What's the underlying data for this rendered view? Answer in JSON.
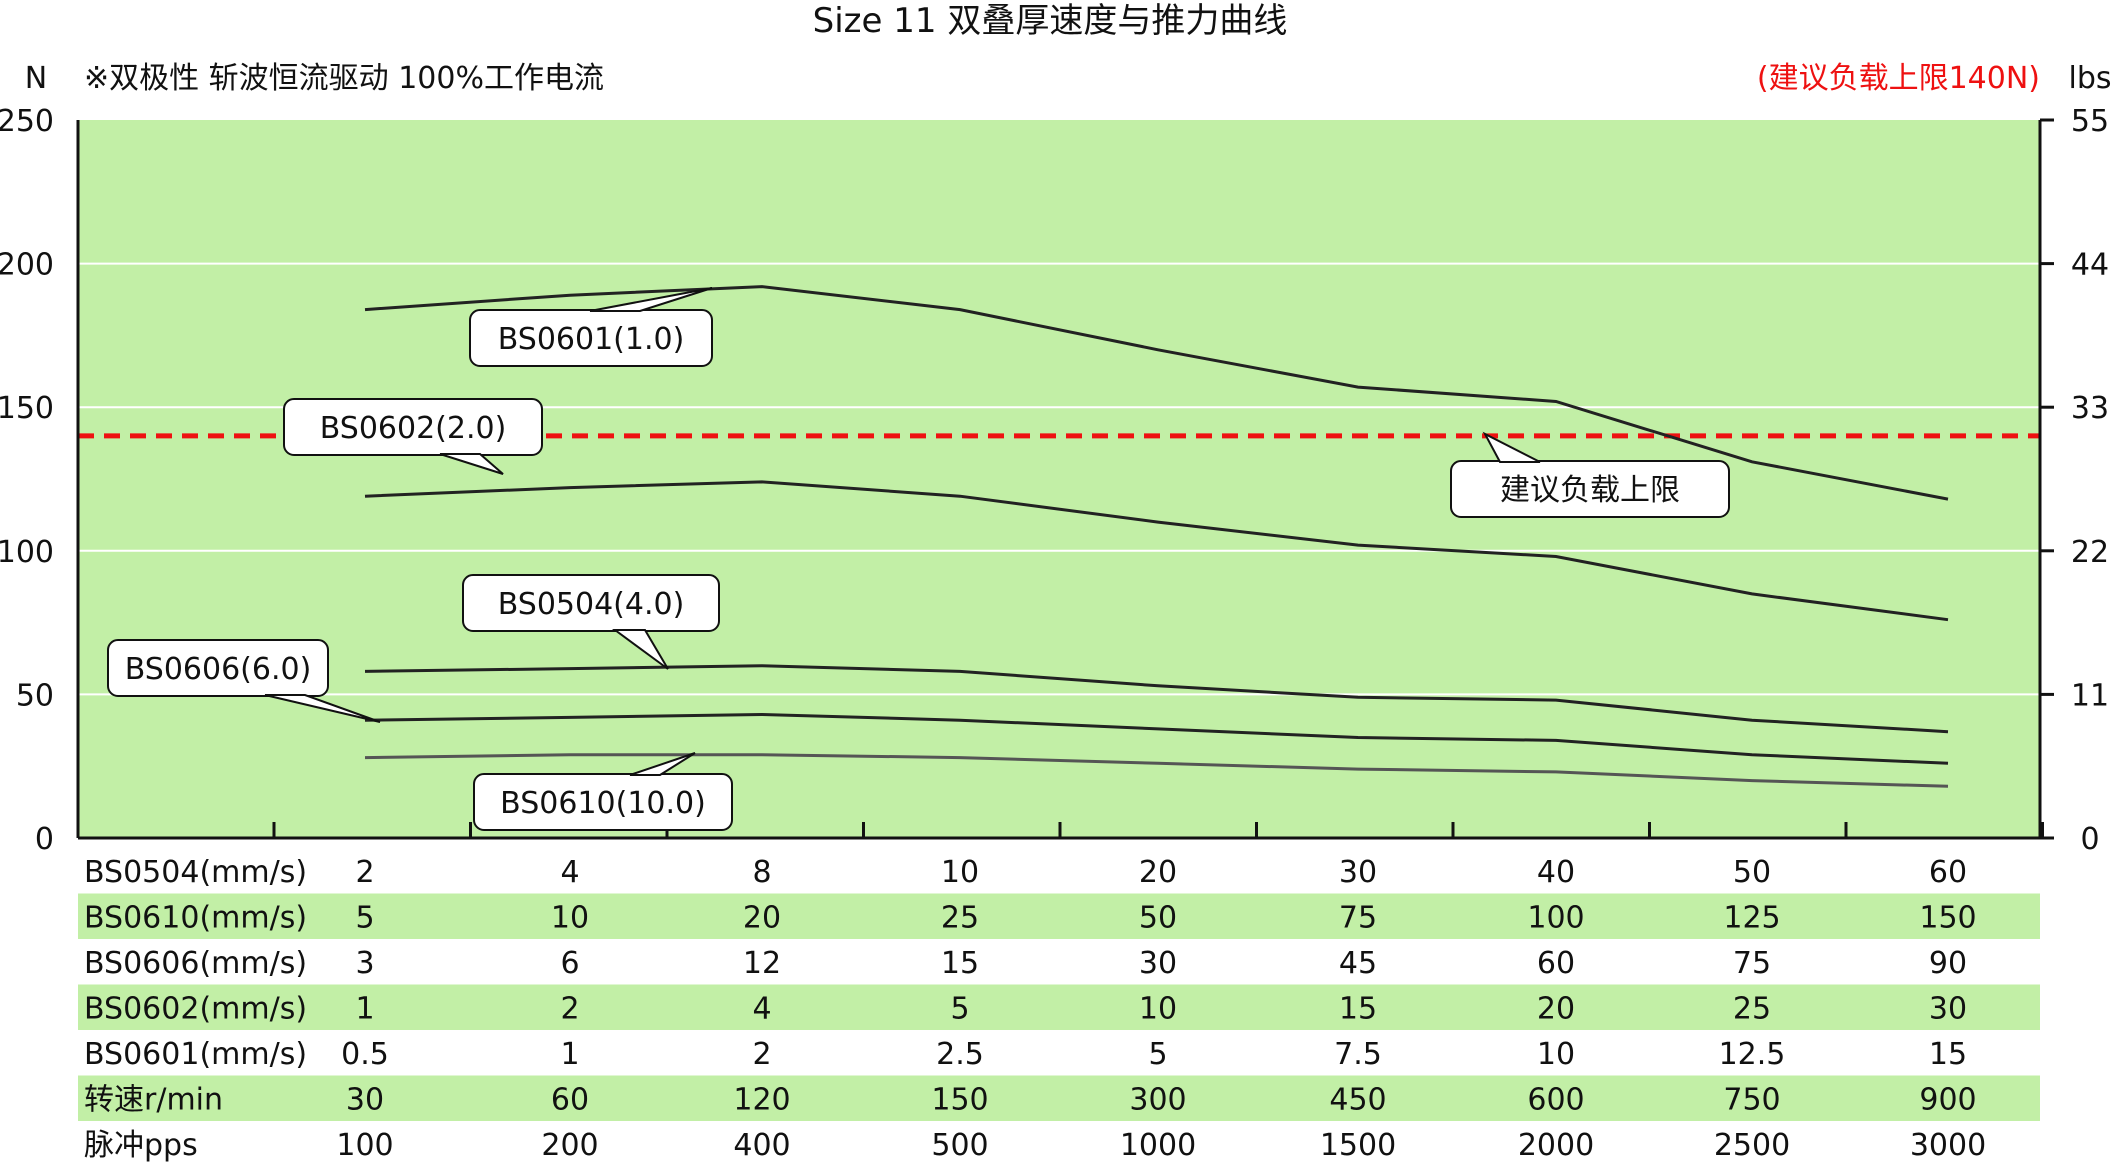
{
  "chart_data": {
    "type": "line",
    "title": "Size 11 双叠厚速度与推力曲线",
    "left_unit": "N",
    "right_unit": "lbs",
    "note": "※双极性 斩波恒流驱动 100%工作电流",
    "limit_note": "(建议负载上限140N)",
    "limit_label": "建议负载上限",
    "limit_value": 140,
    "ylim": [
      0,
      250
    ],
    "y_ticks": [
      "0",
      "50",
      "100",
      "150",
      "200",
      "250"
    ],
    "y2_ticks": [
      "0",
      "11",
      "22",
      "33",
      "44",
      "55"
    ],
    "grid": true,
    "colors": {
      "plot_bg": "#c2efa6",
      "limit": "#ee1111",
      "line": "#222222",
      "band": "#c2efa6"
    },
    "series": [
      {
        "name": "BS0601(1.0)",
        "values": [
          184,
          189,
          192,
          184,
          170,
          157,
          152,
          131,
          118
        ]
      },
      {
        "name": "BS0602(2.0)",
        "values": [
          119,
          122,
          124,
          119,
          110,
          102,
          98,
          85,
          76
        ]
      },
      {
        "name": "BS0504(4.0)",
        "values": [
          58,
          59,
          60,
          58,
          53,
          49,
          48,
          41,
          37
        ]
      },
      {
        "name": "BS0606(6.0)",
        "values": [
          41,
          42,
          43,
          41,
          38,
          35,
          34,
          29,
          26
        ]
      },
      {
        "name": "BS0610(10.0)",
        "values": [
          28,
          29,
          29,
          28,
          26,
          24,
          23,
          20,
          18
        ]
      }
    ],
    "table": [
      {
        "label": "BS0504(mm/s)",
        "values": [
          "2",
          "4",
          "8",
          "10",
          "20",
          "30",
          "40",
          "50",
          "60"
        ]
      },
      {
        "label": "BS0610(mm/s)",
        "values": [
          "5",
          "10",
          "20",
          "25",
          "50",
          "75",
          "100",
          "125",
          "150"
        ]
      },
      {
        "label": "BS0606(mm/s)",
        "values": [
          "3",
          "6",
          "12",
          "15",
          "30",
          "45",
          "60",
          "75",
          "90"
        ]
      },
      {
        "label": "BS0602(mm/s)",
        "values": [
          "1",
          "2",
          "4",
          "5",
          "10",
          "15",
          "20",
          "25",
          "30"
        ]
      },
      {
        "label": "BS0601(mm/s)",
        "values": [
          "0.5",
          "1",
          "2",
          "2.5",
          "5",
          "7.5",
          "10",
          "12.5",
          "15"
        ]
      },
      {
        "label": "转速r/min",
        "values": [
          "30",
          "60",
          "120",
          "150",
          "300",
          "450",
          "600",
          "750",
          "900"
        ]
      },
      {
        "label": "脉冲pps",
        "values": [
          "100",
          "200",
          "400",
          "500",
          "1000",
          "1500",
          "2000",
          "2500",
          "3000"
        ]
      }
    ]
  }
}
